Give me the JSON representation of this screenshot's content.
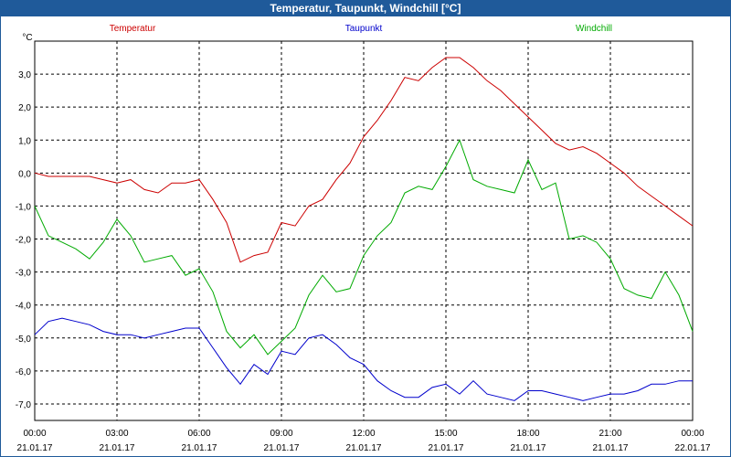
{
  "window": {
    "title": "Temperatur, Taupunkt, Windchill [°C]"
  },
  "chart_data": {
    "type": "line",
    "title": "Temperatur, Taupunkt, Windchill [°C]",
    "ylabel": "°C",
    "ylim": [
      -7.5,
      4.0
    ],
    "xlim": [
      0,
      24
    ],
    "grid": true,
    "yticks": [
      {
        "value": 3.0,
        "label": "3,0"
      },
      {
        "value": 2.0,
        "label": "2,0"
      },
      {
        "value": 1.0,
        "label": "1,0"
      },
      {
        "value": 0.0,
        "label": "0,0"
      },
      {
        "value": -1.0,
        "label": "-1,0"
      },
      {
        "value": -2.0,
        "label": "-2,0"
      },
      {
        "value": -3.0,
        "label": "-3,0"
      },
      {
        "value": -4.0,
        "label": "-4,0"
      },
      {
        "value": -5.0,
        "label": "-5,0"
      },
      {
        "value": -6.0,
        "label": "-6,0"
      },
      {
        "value": -7.0,
        "label": "-7,0"
      }
    ],
    "xticks": [
      {
        "value": 0,
        "time": "00:00",
        "date": "21.01.17"
      },
      {
        "value": 3,
        "time": "03:00",
        "date": "21.01.17"
      },
      {
        "value": 6,
        "time": "06:00",
        "date": "21.01.17"
      },
      {
        "value": 9,
        "time": "09:00",
        "date": "21.01.17"
      },
      {
        "value": 12,
        "time": "12:00",
        "date": "21.01.17"
      },
      {
        "value": 15,
        "time": "15:00",
        "date": "21.01.17"
      },
      {
        "value": 18,
        "time": "18:00",
        "date": "21.01.17"
      },
      {
        "value": 21,
        "time": "21:00",
        "date": "21.01.17"
      },
      {
        "value": 24,
        "time": "00:00",
        "date": "22.01.17"
      }
    ],
    "legend_placement": "top",
    "series": [
      {
        "name": "Temperatur",
        "color": "#cc0000",
        "x": [
          0,
          0.5,
          1,
          1.5,
          2,
          2.5,
          3,
          3.5,
          4,
          4.5,
          5,
          5.5,
          6,
          6.5,
          7,
          7.5,
          8,
          8.5,
          9,
          9.5,
          10,
          10.5,
          11,
          11.5,
          12,
          12.5,
          13,
          13.5,
          14,
          14.5,
          15,
          15.5,
          16,
          16.5,
          17,
          17.5,
          18,
          18.5,
          19,
          19.5,
          20,
          20.5,
          21,
          21.5,
          22,
          22.5,
          23,
          23.5,
          24
        ],
        "values": [
          0.0,
          -0.1,
          -0.1,
          -0.1,
          -0.1,
          -0.2,
          -0.3,
          -0.2,
          -0.5,
          -0.6,
          -0.3,
          -0.3,
          -0.2,
          -0.8,
          -1.5,
          -2.7,
          -2.5,
          -2.4,
          -1.5,
          -1.6,
          -1.0,
          -0.8,
          -0.2,
          0.3,
          1.1,
          1.6,
          2.2,
          2.9,
          2.8,
          3.2,
          3.5,
          3.5,
          3.2,
          2.8,
          2.5,
          2.1,
          1.7,
          1.3,
          0.9,
          0.7,
          0.8,
          0.6,
          0.3,
          0.0,
          -0.4,
          -0.7,
          -1.0,
          -1.3,
          -1.6
        ]
      },
      {
        "name": "Taupunkt",
        "color": "#0000cc",
        "x": [
          0,
          0.5,
          1,
          1.5,
          2,
          2.5,
          3,
          3.5,
          4,
          4.5,
          5,
          5.5,
          6,
          6.5,
          7,
          7.5,
          8,
          8.5,
          9,
          9.5,
          10,
          10.5,
          11,
          11.5,
          12,
          12.5,
          13,
          13.5,
          14,
          14.5,
          15,
          15.5,
          16,
          16.5,
          17,
          17.5,
          18,
          18.5,
          19,
          19.5,
          20,
          20.5,
          21,
          21.5,
          22,
          22.5,
          23,
          23.5,
          24
        ],
        "values": [
          -4.9,
          -4.5,
          -4.4,
          -4.5,
          -4.6,
          -4.8,
          -4.9,
          -4.9,
          -5.0,
          -4.9,
          -4.8,
          -4.7,
          -4.7,
          -5.3,
          -5.9,
          -6.4,
          -5.8,
          -6.1,
          -5.4,
          -5.5,
          -5.0,
          -4.9,
          -5.2,
          -5.6,
          -5.8,
          -6.3,
          -6.6,
          -6.8,
          -6.8,
          -6.5,
          -6.4,
          -6.7,
          -6.3,
          -6.7,
          -6.8,
          -6.9,
          -6.6,
          -6.6,
          -6.7,
          -6.8,
          -6.9,
          -6.8,
          -6.7,
          -6.7,
          -6.6,
          -6.4,
          -6.4,
          -6.3,
          -6.3
        ]
      },
      {
        "name": "Windchill",
        "color": "#00aa00",
        "x": [
          0,
          0.5,
          1,
          1.5,
          2,
          2.5,
          3,
          3.5,
          4,
          4.5,
          5,
          5.5,
          6,
          6.5,
          7,
          7.5,
          8,
          8.5,
          9,
          9.5,
          10,
          10.5,
          11,
          11.5,
          12,
          12.5,
          13,
          13.5,
          14,
          14.5,
          15,
          15.5,
          16,
          16.5,
          17,
          17.5,
          18,
          18.5,
          19,
          19.5,
          20,
          20.5,
          21,
          21.5,
          22,
          22.5,
          23,
          23.5,
          24
        ],
        "values": [
          -1.0,
          -1.9,
          -2.1,
          -2.3,
          -2.6,
          -2.1,
          -1.4,
          -1.9,
          -2.7,
          -2.6,
          -2.5,
          -3.1,
          -2.9,
          -3.6,
          -4.8,
          -5.3,
          -4.9,
          -5.5,
          -5.1,
          -4.7,
          -3.7,
          -3.1,
          -3.6,
          -3.5,
          -2.5,
          -1.9,
          -1.5,
          -0.6,
          -0.4,
          -0.5,
          0.2,
          1.0,
          -0.2,
          -0.4,
          -0.5,
          -0.6,
          0.4,
          -0.5,
          -0.3,
          -2.0,
          -1.9,
          -2.1,
          -2.6,
          -3.5,
          -3.7,
          -3.8,
          -3.0,
          -3.7,
          -4.8
        ]
      }
    ]
  }
}
